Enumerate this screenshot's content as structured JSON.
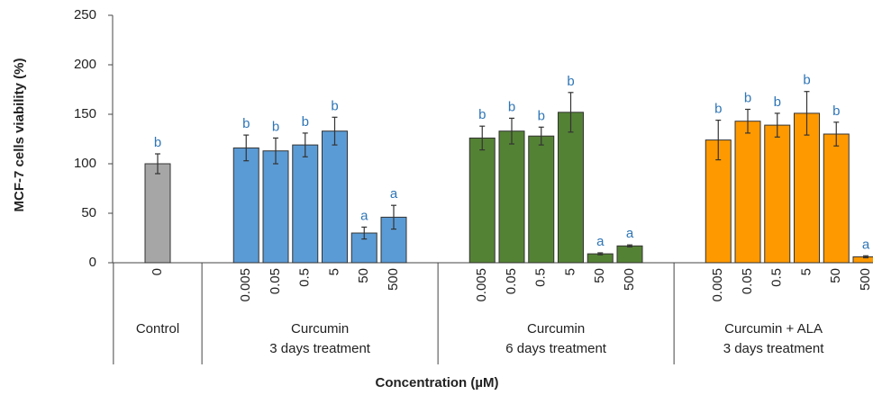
{
  "chart_data": {
    "type": "bar",
    "ylabel": "MCF-7  cells viability  (%)",
    "xlabel": "Concentration (µM)",
    "ylim": [
      0,
      250
    ],
    "yticks": [
      0,
      50,
      100,
      150,
      200,
      250
    ],
    "groups": [
      {
        "name": [
          "Control"
        ],
        "color": "#a6a6a6",
        "categories": [
          "0"
        ],
        "values": [
          100
        ],
        "errors": [
          10
        ],
        "letters": [
          "b"
        ]
      },
      {
        "name": [
          "Curcumin",
          "3 days treatment"
        ],
        "color": "#5b9bd5",
        "categories": [
          "0.005",
          "0.05",
          "0.5",
          "5",
          "50",
          "500"
        ],
        "values": [
          116,
          113,
          119,
          133,
          30,
          46
        ],
        "errors": [
          13,
          13,
          12,
          14,
          6,
          12
        ],
        "letters": [
          "b",
          "b",
          "b",
          "b",
          "a",
          "a"
        ]
      },
      {
        "name": [
          "Curcumin",
          "6 days treatment"
        ],
        "color": "#548235",
        "categories": [
          "0.005",
          "0.05",
          "0.5",
          "5",
          "50",
          "500"
        ],
        "values": [
          126,
          133,
          128,
          152,
          9,
          17
        ],
        "errors": [
          12,
          13,
          9,
          20,
          1,
          1
        ],
        "letters": [
          "b",
          "b",
          "b",
          "b",
          "a",
          "a"
        ]
      },
      {
        "name": [
          "Curcumin + ALA",
          "3 days treatment"
        ],
        "color": "#ff9900",
        "categories": [
          "0.005",
          "0.05",
          "0.5",
          "5",
          "50",
          "500"
        ],
        "values": [
          124,
          143,
          139,
          151,
          130,
          6
        ],
        "errors": [
          20,
          12,
          12,
          22,
          12,
          1
        ],
        "letters": [
          "b",
          "b",
          "b",
          "b",
          "b",
          "a"
        ]
      }
    ]
  }
}
